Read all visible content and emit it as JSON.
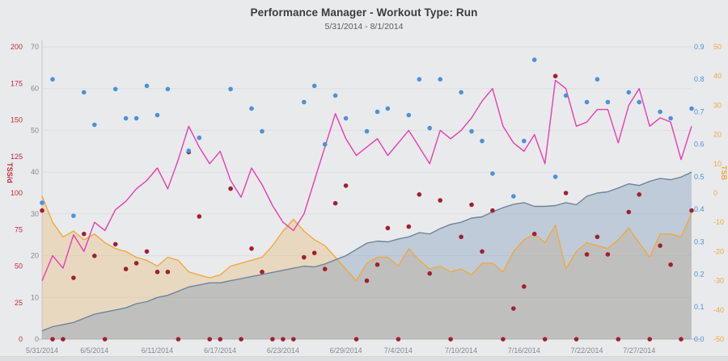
{
  "chart": {
    "title": "Performance Manager - Workout Type: Run",
    "subtitle": "5/31/2014 - 8/1/2014"
  },
  "chart_data": {
    "type": "line",
    "title": "Performance Manager - Workout Type: Run",
    "subtitle": "5/31/2014 - 8/1/2014",
    "grid": "horizontal",
    "x_axis": {
      "unit": "date",
      "start": "5/31/2014",
      "end": "8/1/2014",
      "num_days": 63,
      "ticks": [
        {
          "day": 0,
          "label": "5/31/2014"
        },
        {
          "day": 5,
          "label": "6/5/2014"
        },
        {
          "day": 11,
          "label": "6/11/2014"
        },
        {
          "day": 17,
          "label": "6/17/2014"
        },
        {
          "day": 23,
          "label": "6/23/2014"
        },
        {
          "day": 29,
          "label": "6/29/2014"
        },
        {
          "day": 34,
          "label": "7/4/2014"
        },
        {
          "day": 40,
          "label": "7/10/2014"
        },
        {
          "day": 46,
          "label": "7/16/2014"
        },
        {
          "day": 52,
          "label": "7/22/2014"
        },
        {
          "day": 57,
          "label": "7/27/2014"
        }
      ]
    },
    "y_axes": [
      {
        "id": "tss",
        "side": "left-outer",
        "label": "TSS/d",
        "color": "#c5293b",
        "min": 0,
        "max": 200,
        "ticks": [
          "0",
          "25",
          "50",
          "75",
          "100",
          "125",
          "150",
          "175",
          "200"
        ]
      },
      {
        "id": "load",
        "side": "left-inner",
        "label": "",
        "color": "#85888c",
        "min": 0,
        "max": 70,
        "ticks": [
          "0",
          "10",
          "20",
          "30",
          "40",
          "50",
          "60",
          "70"
        ]
      },
      {
        "id": "if",
        "side": "right-inner",
        "label": "",
        "color": "#4a92da",
        "min": 0,
        "max": 0.9,
        "ticks": [
          "0.0",
          "0.1",
          "0.2",
          "0.3",
          "0.4",
          "0.5",
          "0.6",
          "0.7",
          "0.8",
          "0.9"
        ]
      },
      {
        "id": "tsb",
        "side": "right-outer",
        "label": "TSB",
        "color": "#f0a73e",
        "min": -50,
        "max": 50,
        "ticks": [
          "-50",
          "-40",
          "-30",
          "-20",
          "-10",
          "0",
          "10",
          "20",
          "30",
          "40",
          "50"
        ]
      }
    ],
    "series": [
      {
        "id": "tsb",
        "name": "TSB",
        "kind": "area",
        "axis": "tsb",
        "color": "#efa940",
        "fill": "rgba(229,176,99,0.32)",
        "values": [
          -1,
          -10,
          -15,
          -13,
          -16,
          -14,
          -17,
          -19,
          -20,
          -22,
          -23,
          -25,
          -22,
          -23,
          -27,
          -28,
          -29,
          -28,
          -25,
          -24,
          -23,
          -22,
          -18,
          -13,
          -9,
          -13,
          -16,
          -18,
          -22,
          -26,
          -30,
          -24,
          -22,
          -22,
          -25,
          -19,
          -23,
          -26,
          -25,
          -27,
          -26,
          -28,
          -24,
          -24,
          -27,
          -20,
          -16,
          -14,
          -17,
          -11,
          -26,
          -20,
          -17,
          -18,
          -19,
          -16,
          -12,
          -17,
          -22,
          -14,
          -14,
          -15,
          -7
        ]
      },
      {
        "id": "ctl",
        "name": "CTL",
        "kind": "area",
        "axis": "load",
        "color": "#6e8499",
        "fill": "rgba(124,152,183,0.38)",
        "values": [
          2,
          3,
          3.5,
          4,
          5,
          6,
          6.5,
          7,
          7.5,
          8.5,
          9,
          10,
          10.5,
          11.5,
          12.5,
          13,
          13.5,
          13.5,
          14,
          14.5,
          15,
          15.5,
          16,
          16.5,
          17,
          17.5,
          17.3,
          18,
          19,
          20,
          21.5,
          23,
          23.5,
          23.3,
          24,
          24.5,
          25.5,
          25.2,
          26.5,
          27.5,
          28,
          29,
          29.3,
          30.5,
          31.5,
          32.3,
          32.7,
          31.8,
          31.8,
          32,
          32.7,
          32.2,
          34.2,
          35,
          35.3,
          36.2,
          37.2,
          36.8,
          37.8,
          38.5,
          38.2,
          38.8,
          40
        ]
      },
      {
        "id": "atl",
        "name": "ATL",
        "kind": "line",
        "axis": "load",
        "color": "#ea3cae",
        "values": [
          14,
          20,
          17,
          25,
          21,
          28,
          26,
          31,
          33,
          36,
          38,
          41,
          36,
          43,
          51,
          46,
          42,
          45,
          38,
          34,
          41,
          37,
          32,
          28,
          26,
          30,
          38,
          46,
          54,
          48,
          44,
          46,
          48,
          44,
          47,
          50,
          46,
          42,
          50,
          48,
          50,
          53,
          57,
          60,
          51,
          47,
          45,
          49,
          42,
          62,
          60,
          51,
          52,
          55,
          55,
          47,
          56,
          60,
          51,
          53,
          52,
          43,
          51
        ]
      },
      {
        "id": "tss",
        "name": "TSS",
        "kind": "scatter",
        "axis": "tss",
        "color": "#a21f30",
        "points": [
          [
            0,
            88
          ],
          [
            1,
            0
          ],
          [
            2,
            0
          ],
          [
            3,
            42
          ],
          [
            4,
            72
          ],
          [
            5,
            57
          ],
          [
            6,
            0
          ],
          [
            7,
            65
          ],
          [
            8,
            48
          ],
          [
            9,
            52
          ],
          [
            10,
            60
          ],
          [
            11,
            46
          ],
          [
            12,
            46
          ],
          [
            13,
            0
          ],
          [
            14,
            128
          ],
          [
            15,
            84
          ],
          [
            16,
            0
          ],
          [
            17,
            0
          ],
          [
            18,
            103
          ],
          [
            19,
            0
          ],
          [
            20,
            62
          ],
          [
            21,
            46
          ],
          [
            22,
            0
          ],
          [
            23,
            0
          ],
          [
            24,
            0
          ],
          [
            25,
            56
          ],
          [
            26,
            59
          ],
          [
            27,
            48
          ],
          [
            28,
            93
          ],
          [
            29,
            105
          ],
          [
            30,
            0
          ],
          [
            31,
            40
          ],
          [
            32,
            51
          ],
          [
            33,
            76
          ],
          [
            34,
            0
          ],
          [
            35,
            77
          ],
          [
            36,
            99
          ],
          [
            37,
            45
          ],
          [
            38,
            95
          ],
          [
            39,
            0
          ],
          [
            40,
            70
          ],
          [
            41,
            92
          ],
          [
            42,
            60
          ],
          [
            43,
            88
          ],
          [
            44,
            0
          ],
          [
            45,
            21
          ],
          [
            46,
            36
          ],
          [
            47,
            72
          ],
          [
            48,
            0
          ],
          [
            49,
            180
          ],
          [
            50,
            100
          ],
          [
            51,
            0
          ],
          [
            52,
            58
          ],
          [
            53,
            70
          ],
          [
            54,
            58
          ],
          [
            55,
            0
          ],
          [
            56,
            87
          ],
          [
            57,
            99
          ],
          [
            58,
            0
          ],
          [
            59,
            64
          ],
          [
            60,
            51
          ],
          [
            61,
            0
          ],
          [
            62,
            88
          ]
        ]
      },
      {
        "id": "if",
        "name": "IF",
        "kind": "scatter",
        "axis": "if",
        "color": "#4a92da",
        "points": [
          [
            0,
            0.42
          ],
          [
            1,
            0.8
          ],
          [
            3,
            0.38
          ],
          [
            4,
            0.76
          ],
          [
            5,
            0.66
          ],
          [
            7,
            0.77
          ],
          [
            8,
            0.68
          ],
          [
            9,
            0.68
          ],
          [
            10,
            0.78
          ],
          [
            11,
            0.69
          ],
          [
            12,
            0.77
          ],
          [
            14,
            0.58
          ],
          [
            15,
            0.62
          ],
          [
            18,
            0.77
          ],
          [
            20,
            0.71
          ],
          [
            21,
            0.64
          ],
          [
            25,
            0.73
          ],
          [
            26,
            0.78
          ],
          [
            27,
            0.6
          ],
          [
            28,
            0.75
          ],
          [
            29,
            0.68
          ],
          [
            31,
            0.64
          ],
          [
            32,
            0.7
          ],
          [
            33,
            0.71
          ],
          [
            35,
            0.69
          ],
          [
            36,
            0.8
          ],
          [
            37,
            0.65
          ],
          [
            38,
            0.8
          ],
          [
            40,
            0.76
          ],
          [
            41,
            0.64
          ],
          [
            42,
            0.61
          ],
          [
            43,
            0.51
          ],
          [
            45,
            0.44
          ],
          [
            46,
            0.61
          ],
          [
            47,
            0.86
          ],
          [
            49,
            0.5
          ],
          [
            50,
            0.75
          ],
          [
            52,
            0.73
          ],
          [
            53,
            0.8
          ],
          [
            54,
            0.73
          ],
          [
            56,
            0.76
          ],
          [
            57,
            0.73
          ],
          [
            59,
            0.7
          ],
          [
            60,
            0.68
          ],
          [
            62,
            0.71
          ]
        ]
      }
    ]
  },
  "style": {
    "background": "#e9eaec",
    "gridline": "#dcdee0",
    "axis_line": "#c6c8ca",
    "bottom_axis_line": "#bcbec1",
    "x_label_color": "#85888c"
  }
}
